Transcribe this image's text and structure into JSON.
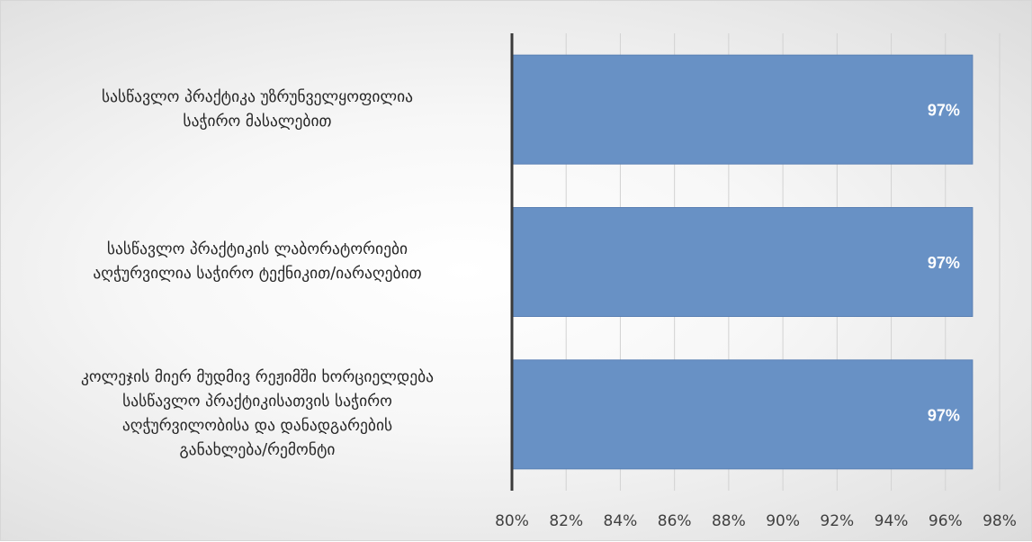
{
  "chart_data": {
    "type": "bar",
    "orientation": "horizontal",
    "categories": [
      [
        "სასწავლო პრაქტიკა უზრუნველყოფილია",
        "საჭირო მასალებით"
      ],
      [
        "სასწავლო პრაქტიკის ლაბორატორიები",
        "აღჭურვილია საჭირო ტექნიკით/იარაღებით"
      ],
      [
        "კოლეჯის მიერ მუდმივ რეჟიმში ხორციელდება",
        "სასწავლო პრაქტიკისათვის საჭირო",
        "აღჭურვილობისა და დანადგარების",
        "განახლება/რემონტი"
      ]
    ],
    "values": [
      97,
      97,
      97
    ],
    "data_labels": [
      "97%",
      "97%",
      "97%"
    ],
    "x_ticks": [
      80,
      82,
      84,
      86,
      88,
      90,
      92,
      94,
      96,
      98
    ],
    "x_tick_labels": [
      "80%",
      "82%",
      "84%",
      "86%",
      "88%",
      "90%",
      "92%",
      "94%",
      "96%",
      "98%"
    ],
    "xlim": [
      80,
      98
    ],
    "grid": true,
    "bar_color": "#6891c5",
    "title": "",
    "xlabel": "",
    "ylabel": ""
  }
}
